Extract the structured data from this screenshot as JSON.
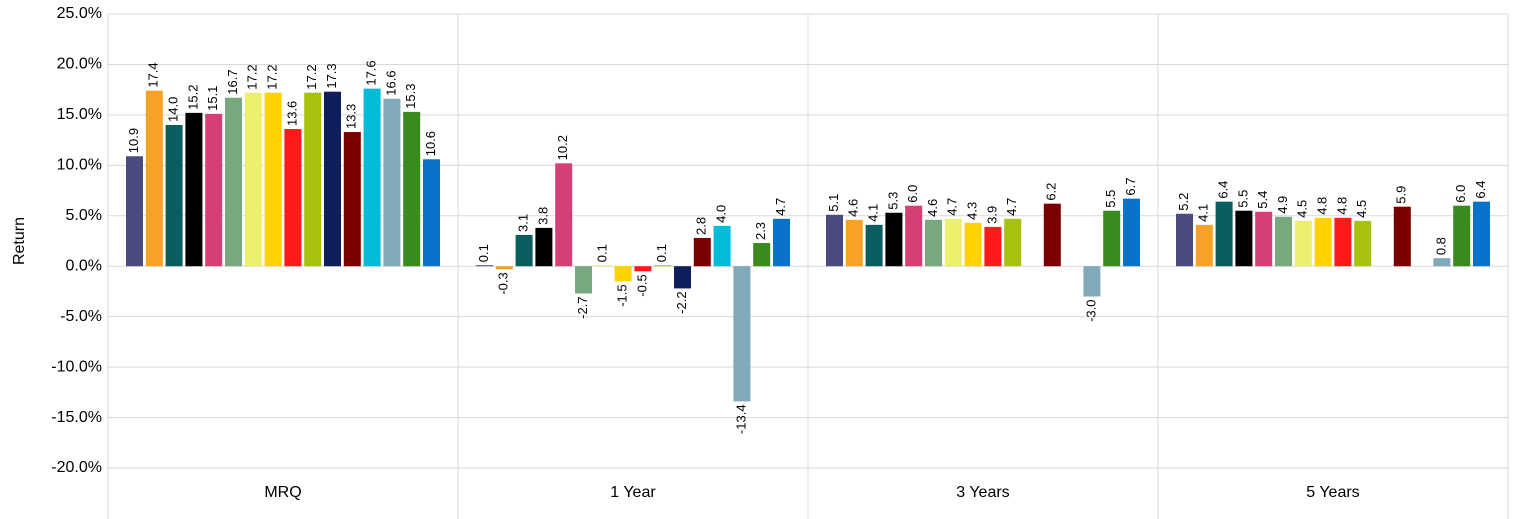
{
  "chart_data": {
    "type": "bar",
    "y_label": "Return",
    "categories": [
      "MRQ",
      "1 Year",
      "3 Years",
      "5 Years"
    ],
    "ylim": [
      -20,
      25
    ],
    "yticks": [
      {
        "value": -20,
        "label": "-20.0%"
      },
      {
        "value": -15,
        "label": "-15.0%"
      },
      {
        "value": -10,
        "label": "-10.0%"
      },
      {
        "value": -5,
        "label": "-5.0%"
      },
      {
        "value": 0,
        "label": "0.0%"
      },
      {
        "value": 5,
        "label": "5.0%"
      },
      {
        "value": 10,
        "label": "10.0%"
      },
      {
        "value": 15,
        "label": "15.0%"
      },
      {
        "value": 20,
        "label": "20.0%"
      },
      {
        "value": 25,
        "label": "25.0%"
      }
    ],
    "grid": true,
    "series": [
      {
        "color": "#4b4a7e",
        "values": [
          10.9,
          0.1,
          5.1,
          5.2
        ],
        "value_labels": [
          "10.9",
          "0.1",
          "5.1",
          "5.2"
        ]
      },
      {
        "color": "#f7a226",
        "values": [
          17.4,
          -0.3,
          4.6,
          4.1
        ],
        "value_labels": [
          "17.4",
          "-0.3",
          "4.6",
          "4.1"
        ]
      },
      {
        "color": "#0b5e60",
        "values": [
          14.0,
          3.1,
          4.1,
          6.4
        ],
        "value_labels": [
          "14.0",
          "3.1",
          "4.1",
          "6.4"
        ]
      },
      {
        "color": "#000000",
        "values": [
          15.2,
          3.8,
          5.3,
          5.5
        ],
        "value_labels": [
          "15.2",
          "3.8",
          "5.3",
          "5.5"
        ]
      },
      {
        "color": "#d63e78",
        "values": [
          15.1,
          10.2,
          6.0,
          5.4
        ],
        "value_labels": [
          "15.1",
          "10.2",
          "6.0",
          "5.4"
        ]
      },
      {
        "color": "#78a87e",
        "values": [
          16.7,
          -2.7,
          4.6,
          4.9
        ],
        "value_labels": [
          "16.7",
          "-2.7",
          "4.6",
          "4.9"
        ]
      },
      {
        "color": "#ecef70",
        "values": [
          17.2,
          0.1,
          4.7,
          4.5
        ],
        "value_labels": [
          "17.2",
          "0.1",
          "4.7",
          "4.5"
        ]
      },
      {
        "color": "#ffd200",
        "values": [
          17.2,
          -1.5,
          4.3,
          4.8
        ],
        "value_labels": [
          "17.2",
          "-1.5",
          "4.3",
          "4.8"
        ]
      },
      {
        "color": "#ff1a1a",
        "values": [
          13.6,
          -0.5,
          3.9,
          4.8
        ],
        "value_labels": [
          "13.6",
          "-0.5",
          "3.9",
          "4.8"
        ]
      },
      {
        "color": "#a8c010",
        "values": [
          17.2,
          0.1,
          4.7,
          4.5
        ],
        "value_labels": [
          "17.2",
          "0.1",
          "4.7",
          "4.5"
        ]
      },
      {
        "color": "#101e5c",
        "values": [
          17.3,
          -2.2,
          null,
          null
        ],
        "value_labels": [
          "17.3",
          "-2.2",
          null,
          null
        ]
      },
      {
        "color": "#7a0000",
        "values": [
          13.3,
          2.8,
          6.2,
          5.9
        ],
        "value_labels": [
          "13.3",
          "2.8",
          "6.2",
          "5.9"
        ]
      },
      {
        "color": "#00bcd6",
        "values": [
          17.6,
          4.0,
          null,
          null
        ],
        "value_labels": [
          "17.6",
          "4.0",
          null,
          null
        ]
      },
      {
        "color": "#80a9b9",
        "values": [
          16.6,
          -13.4,
          -3.0,
          0.8
        ],
        "value_labels": [
          "16.6",
          "-13.4",
          "-3.0",
          "0.8"
        ]
      },
      {
        "color": "#3a8a1e",
        "values": [
          15.3,
          2.3,
          5.5,
          6.0
        ],
        "value_labels": [
          "15.3",
          "2.3",
          "5.5",
          "6.0"
        ]
      },
      {
        "color": "#0b72c9",
        "values": [
          10.6,
          4.7,
          6.7,
          6.4
        ],
        "value_labels": [
          "10.6",
          "4.7",
          "6.7",
          "6.4"
        ]
      }
    ]
  }
}
